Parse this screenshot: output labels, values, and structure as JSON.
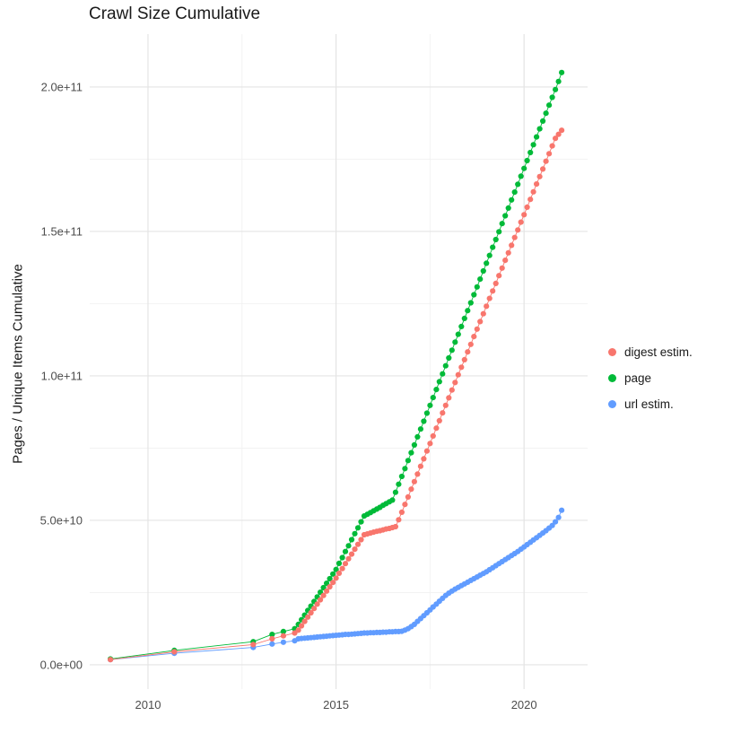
{
  "chart_data": {
    "type": "scatter",
    "title": "Crawl Size Cumulative",
    "xlabel": "",
    "ylabel": "Pages / Unique Items Cumulative",
    "y_values_scale": "1e9",
    "x_domain": [
      2008.45,
      2021.69
    ],
    "y_domain": [
      -8.4,
      218.3
    ],
    "x_ticks": [
      {
        "value": 2010,
        "label": "2010"
      },
      {
        "value": 2015,
        "label": "2015"
      },
      {
        "value": 2020,
        "label": "2020"
      }
    ],
    "y_ticks": [
      {
        "value": 0,
        "label": "0.0e+00"
      },
      {
        "value": 50,
        "label": "5.0e+10"
      },
      {
        "value": 100,
        "label": "1.0e+11"
      },
      {
        "value": 150,
        "label": "1.5e+11"
      },
      {
        "value": 200,
        "label": "2.0e+11"
      }
    ],
    "x_minor_gridlines": [
      2012.5,
      2017.5
    ],
    "y_minor_gridlines": [
      25,
      75,
      125,
      175
    ],
    "grid": true,
    "legend_position": "right",
    "colors": {
      "grid_major": "#e4e4e4",
      "grid_minor": "#f2f2f2",
      "axis_text": "#4d4d4d",
      "text": "#1a1a1a",
      "background": "#ffffff"
    },
    "series": [
      {
        "id": "digest-estim",
        "name": "digest estim.",
        "color": "#F8766D",
        "points": [
          [
            2009,
            1.8
          ],
          [
            2010.7,
            4.5
          ],
          [
            2012.8,
            7
          ],
          [
            2013.3,
            9
          ],
          [
            2013.6,
            10
          ],
          [
            2013.9,
            11
          ],
          [
            2014,
            12
          ],
          [
            2014.083,
            13.5
          ],
          [
            2014.167,
            15
          ],
          [
            2014.25,
            16.5
          ],
          [
            2014.333,
            18
          ],
          [
            2014.417,
            19.5
          ],
          [
            2014.5,
            21
          ],
          [
            2014.583,
            22.5
          ],
          [
            2014.667,
            24
          ],
          [
            2014.75,
            25.5
          ],
          [
            2014.833,
            27
          ],
          [
            2014.917,
            28.5
          ],
          [
            2015,
            30
          ],
          [
            2015.083,
            31.7
          ],
          [
            2015.167,
            33.3
          ],
          [
            2015.25,
            35
          ],
          [
            2015.333,
            36.7
          ],
          [
            2015.417,
            38.3
          ],
          [
            2015.5,
            40
          ],
          [
            2015.583,
            41.7
          ],
          [
            2015.667,
            43.3
          ],
          [
            2015.75,
            45
          ],
          [
            2015.833,
            45.3
          ],
          [
            2015.917,
            45.6
          ],
          [
            2016,
            45.9
          ],
          [
            2016.083,
            46.2
          ],
          [
            2016.167,
            46.4
          ],
          [
            2016.25,
            46.7
          ],
          [
            2016.333,
            47
          ],
          [
            2016.417,
            47.2
          ],
          [
            2016.5,
            47.5
          ],
          [
            2016.583,
            47.8
          ],
          [
            2016.667,
            50.2
          ],
          [
            2016.75,
            52.8
          ],
          [
            2016.833,
            55.5
          ],
          [
            2016.917,
            58.1
          ],
          [
            2017,
            60.8
          ],
          [
            2017.083,
            63.4
          ],
          [
            2017.167,
            66
          ],
          [
            2017.25,
            68.7
          ],
          [
            2017.333,
            71.3
          ],
          [
            2017.417,
            74
          ],
          [
            2017.5,
            76.6
          ],
          [
            2017.583,
            79.2
          ],
          [
            2017.667,
            81.9
          ],
          [
            2017.75,
            84.5
          ],
          [
            2017.833,
            87.2
          ],
          [
            2017.917,
            89.8
          ],
          [
            2018,
            92.4
          ],
          [
            2018.083,
            95.1
          ],
          [
            2018.167,
            97.7
          ],
          [
            2018.25,
            100.4
          ],
          [
            2018.333,
            103
          ],
          [
            2018.417,
            105.6
          ],
          [
            2018.5,
            108.3
          ],
          [
            2018.583,
            110.9
          ],
          [
            2018.667,
            113.6
          ],
          [
            2018.75,
            116.2
          ],
          [
            2018.833,
            118.8
          ],
          [
            2018.917,
            121.5
          ],
          [
            2019,
            124.1
          ],
          [
            2019.083,
            126.8
          ],
          [
            2019.167,
            129.4
          ],
          [
            2019.25,
            132
          ],
          [
            2019.333,
            134.7
          ],
          [
            2019.417,
            137.3
          ],
          [
            2019.5,
            140
          ],
          [
            2019.583,
            142.6
          ],
          [
            2019.667,
            145.2
          ],
          [
            2019.75,
            147.9
          ],
          [
            2019.833,
            150.5
          ],
          [
            2019.917,
            153.2
          ],
          [
            2020,
            155.8
          ],
          [
            2020.083,
            158.4
          ],
          [
            2020.167,
            161.1
          ],
          [
            2020.25,
            163.7
          ],
          [
            2020.333,
            166.4
          ],
          [
            2020.417,
            169
          ],
          [
            2020.5,
            171.6
          ],
          [
            2020.583,
            174.3
          ],
          [
            2020.667,
            176.9
          ],
          [
            2020.75,
            179.6
          ],
          [
            2020.833,
            182.2
          ],
          [
            2020.917,
            183.6
          ],
          [
            2021,
            185
          ]
        ]
      },
      {
        "id": "page",
        "name": "page",
        "color": "#00BA38",
        "points": [
          [
            2009,
            2
          ],
          [
            2010.7,
            5
          ],
          [
            2012.8,
            8
          ],
          [
            2013.3,
            10.5
          ],
          [
            2013.6,
            11.5
          ],
          [
            2013.9,
            12.5
          ],
          [
            2014,
            14
          ],
          [
            2014.083,
            15.6
          ],
          [
            2014.167,
            17.2
          ],
          [
            2014.25,
            18.8
          ],
          [
            2014.333,
            20.3
          ],
          [
            2014.417,
            21.9
          ],
          [
            2014.5,
            23.5
          ],
          [
            2014.583,
            25.1
          ],
          [
            2014.667,
            26.7
          ],
          [
            2014.75,
            28.2
          ],
          [
            2014.833,
            29.8
          ],
          [
            2014.917,
            31.4
          ],
          [
            2015,
            33
          ],
          [
            2015.083,
            35.1
          ],
          [
            2015.167,
            37.1
          ],
          [
            2015.25,
            39.2
          ],
          [
            2015.333,
            41.2
          ],
          [
            2015.417,
            43.3
          ],
          [
            2015.5,
            45.4
          ],
          [
            2015.583,
            47.4
          ],
          [
            2015.667,
            49.5
          ],
          [
            2015.75,
            51.5
          ],
          [
            2015.833,
            52.1
          ],
          [
            2015.917,
            52.7
          ],
          [
            2016,
            53.3
          ],
          [
            2016.083,
            53.9
          ],
          [
            2016.167,
            54.5
          ],
          [
            2016.25,
            55.2
          ],
          [
            2016.333,
            55.8
          ],
          [
            2016.417,
            56.4
          ],
          [
            2016.5,
            57
          ],
          [
            2016.583,
            59.7
          ],
          [
            2016.667,
            62.5
          ],
          [
            2016.75,
            65.2
          ],
          [
            2016.833,
            67.9
          ],
          [
            2016.917,
            70.7
          ],
          [
            2017,
            73.4
          ],
          [
            2017.083,
            76.1
          ],
          [
            2017.167,
            78.9
          ],
          [
            2017.25,
            81.6
          ],
          [
            2017.333,
            84.3
          ],
          [
            2017.417,
            87.1
          ],
          [
            2017.5,
            89.8
          ],
          [
            2017.583,
            92.5
          ],
          [
            2017.667,
            95.3
          ],
          [
            2017.75,
            98
          ],
          [
            2017.833,
            100.7
          ],
          [
            2017.917,
            103.5
          ],
          [
            2018,
            106.2
          ],
          [
            2018.083,
            108.9
          ],
          [
            2018.167,
            111.7
          ],
          [
            2018.25,
            114.4
          ],
          [
            2018.333,
            117.1
          ],
          [
            2018.417,
            119.9
          ],
          [
            2018.5,
            122.6
          ],
          [
            2018.583,
            125.3
          ],
          [
            2018.667,
            128.1
          ],
          [
            2018.75,
            130.8
          ],
          [
            2018.833,
            133.5
          ],
          [
            2018.917,
            136.3
          ],
          [
            2019,
            139
          ],
          [
            2019.083,
            141.7
          ],
          [
            2019.167,
            144.5
          ],
          [
            2019.25,
            147.2
          ],
          [
            2019.333,
            149.9
          ],
          [
            2019.417,
            152.7
          ],
          [
            2019.5,
            155.4
          ],
          [
            2019.583,
            158.1
          ],
          [
            2019.667,
            160.9
          ],
          [
            2019.75,
            163.6
          ],
          [
            2019.833,
            166.3
          ],
          [
            2019.917,
            169.1
          ],
          [
            2020,
            171.8
          ],
          [
            2020.083,
            174.5
          ],
          [
            2020.167,
            177.3
          ],
          [
            2020.25,
            180
          ],
          [
            2020.333,
            182.7
          ],
          [
            2020.417,
            185.5
          ],
          [
            2020.5,
            188.2
          ],
          [
            2020.583,
            190.9
          ],
          [
            2020.667,
            193.7
          ],
          [
            2020.75,
            196.4
          ],
          [
            2020.833,
            199.1
          ],
          [
            2020.917,
            201.9
          ],
          [
            2021,
            205
          ]
        ]
      },
      {
        "id": "url-estim",
        "name": "url estim.",
        "color": "#619CFF",
        "points": [
          [
            2009,
            1.8
          ],
          [
            2010.7,
            4
          ],
          [
            2012.8,
            6
          ],
          [
            2013.3,
            7.2
          ],
          [
            2013.6,
            7.8
          ],
          [
            2013.9,
            8.3
          ],
          [
            2014,
            9
          ],
          [
            2014.083,
            9.1
          ],
          [
            2014.167,
            9.2
          ],
          [
            2014.25,
            9.3
          ],
          [
            2014.333,
            9.4
          ],
          [
            2014.417,
            9.5
          ],
          [
            2014.5,
            9.6
          ],
          [
            2014.583,
            9.7
          ],
          [
            2014.667,
            9.8
          ],
          [
            2014.75,
            9.9
          ],
          [
            2014.833,
            10
          ],
          [
            2014.917,
            10.1
          ],
          [
            2015,
            10.2
          ],
          [
            2015.083,
            10.3
          ],
          [
            2015.167,
            10.4
          ],
          [
            2015.25,
            10.5
          ],
          [
            2015.333,
            10.5
          ],
          [
            2015.417,
            10.6
          ],
          [
            2015.5,
            10.7
          ],
          [
            2015.583,
            10.8
          ],
          [
            2015.667,
            10.9
          ],
          [
            2015.75,
            11
          ],
          [
            2015.833,
            11
          ],
          [
            2015.917,
            11.1
          ],
          [
            2016,
            11.1
          ],
          [
            2016.083,
            11.2
          ],
          [
            2016.167,
            11.2
          ],
          [
            2016.25,
            11.3
          ],
          [
            2016.333,
            11.3
          ],
          [
            2016.417,
            11.4
          ],
          [
            2016.5,
            11.4
          ],
          [
            2016.583,
            11.5
          ],
          [
            2016.667,
            11.5
          ],
          [
            2016.75,
            11.6
          ],
          [
            2016.833,
            12
          ],
          [
            2016.917,
            12.5
          ],
          [
            2017,
            13.2
          ],
          [
            2017.083,
            14
          ],
          [
            2017.167,
            15
          ],
          [
            2017.25,
            16
          ],
          [
            2017.333,
            17
          ],
          [
            2017.417,
            18
          ],
          [
            2017.5,
            19
          ],
          [
            2017.583,
            20
          ],
          [
            2017.667,
            21
          ],
          [
            2017.75,
            22
          ],
          [
            2017.833,
            23
          ],
          [
            2017.917,
            24
          ],
          [
            2018,
            24.8
          ],
          [
            2018.083,
            25.5
          ],
          [
            2018.167,
            26.2
          ],
          [
            2018.25,
            26.8
          ],
          [
            2018.333,
            27.4
          ],
          [
            2018.417,
            28
          ],
          [
            2018.5,
            28.6
          ],
          [
            2018.583,
            29.2
          ],
          [
            2018.667,
            29.8
          ],
          [
            2018.75,
            30.4
          ],
          [
            2018.833,
            31
          ],
          [
            2018.917,
            31.6
          ],
          [
            2019,
            32.2
          ],
          [
            2019.083,
            32.9
          ],
          [
            2019.167,
            33.6
          ],
          [
            2019.25,
            34.3
          ],
          [
            2019.333,
            35
          ],
          [
            2019.417,
            35.7
          ],
          [
            2019.5,
            36.4
          ],
          [
            2019.583,
            37.1
          ],
          [
            2019.667,
            37.8
          ],
          [
            2019.75,
            38.5
          ],
          [
            2019.833,
            39.2
          ],
          [
            2019.917,
            40
          ],
          [
            2020,
            40.8
          ],
          [
            2020.083,
            41.6
          ],
          [
            2020.167,
            42.4
          ],
          [
            2020.25,
            43.2
          ],
          [
            2020.333,
            44
          ],
          [
            2020.417,
            44.8
          ],
          [
            2020.5,
            45.6
          ],
          [
            2020.583,
            46.4
          ],
          [
            2020.667,
            47.3
          ],
          [
            2020.75,
            48.2
          ],
          [
            2020.833,
            49.5
          ],
          [
            2020.917,
            51
          ],
          [
            2021,
            53.5
          ]
        ]
      }
    ]
  }
}
